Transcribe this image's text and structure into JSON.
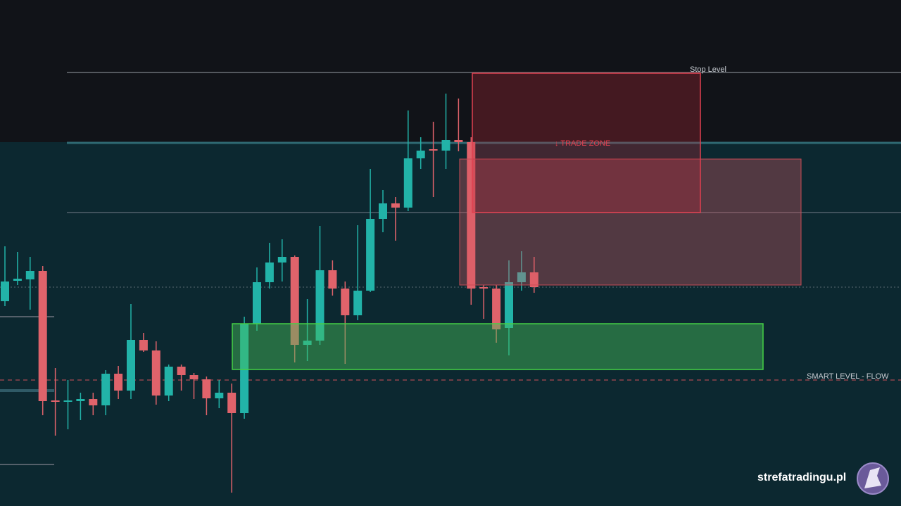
{
  "chart_data": {
    "type": "candlestick",
    "ylim": [
      0,
      719
    ],
    "up_color": "#22b3a8",
    "down_color": "#e0636b",
    "open": [
      291,
      320,
      322,
      334,
      150,
      149,
      149,
      152,
      143,
      188,
      164,
      236,
      221,
      157,
      198,
      186,
      180,
      153,
      161,
      132,
      259,
      318,
      346,
      354,
      229,
      235,
      335,
      309,
      271,
      306,
      408,
      430,
      424,
      494,
      507,
      505,
      520,
      517,
      311,
      309,
      253,
      318,
      332
    ],
    "high": [
      369,
      361,
      354,
      341,
      196,
      179,
      161,
      161,
      193,
      199,
      287,
      246,
      234,
      201,
      201,
      189,
      184,
      179,
      174,
      269,
      339,
      374,
      379,
      356,
      294,
      398,
      349,
      319,
      399,
      479,
      449,
      439,
      562,
      524,
      546,
      586,
      579,
      524,
      314,
      314,
      349,
      362,
      354
    ],
    "low": [
      284,
      314,
      279,
      129,
      100,
      109,
      122,
      129,
      129,
      152,
      152,
      219,
      144,
      149,
      164,
      152,
      129,
      139,
      19,
      124,
      249,
      309,
      319,
      204,
      206,
      229,
      299,
      202,
      264,
      304,
      389,
      377,
      419,
      479,
      439,
      479,
      504,
      286,
      266,
      232,
      214,
      306,
      303
    ],
    "close": [
      319,
      323,
      334,
      149,
      148,
      150,
      152,
      143,
      188,
      164,
      236,
      221,
      157,
      198,
      186,
      180,
      153,
      161,
      132,
      259,
      318,
      346,
      354,
      229,
      235,
      335,
      309,
      271,
      306,
      408,
      430,
      424,
      494,
      505,
      505,
      520,
      517,
      309,
      309,
      251,
      318,
      332,
      311
    ],
    "annotations": [
      "Stop Level",
      "↓ TRADE ZONE",
      "SMART LEVEL - FLOW"
    ],
    "watermark": "strefatradingu.pl"
  }
}
